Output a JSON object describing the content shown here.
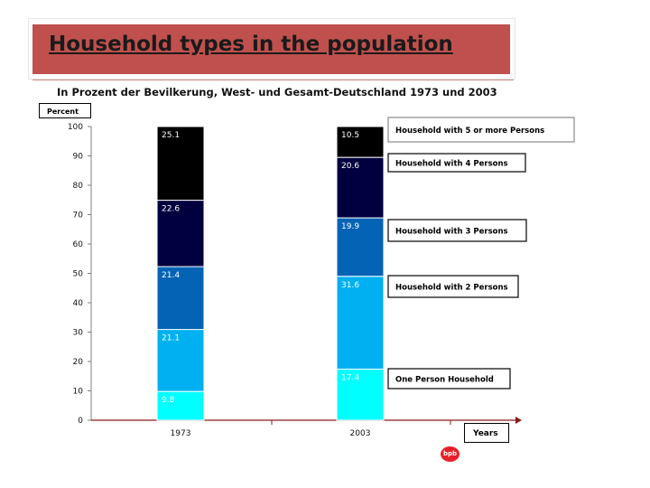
{
  "slide": {
    "title": "Household types in the population",
    "subtitle": "In Prozent der Bevilkerung, West- und Gesamt-Deutschland 1973 und 2003",
    "y_unit_label": "Percent",
    "x_unit_label": "Years",
    "logo_text": "bpb"
  },
  "chart_data": {
    "type": "bar",
    "stacked": true,
    "title": "Household types in the population",
    "subtitle": "In Prozent der Bevilkerung, West- und Gesamt-Deutschland 1973 und 2003",
    "xlabel": "Years",
    "ylabel": "Percent",
    "ylim": [
      0,
      100
    ],
    "yticks": [
      0,
      10,
      20,
      30,
      40,
      50,
      60,
      70,
      80,
      90,
      100
    ],
    "categories": [
      "1973",
      "2003"
    ],
    "series": [
      {
        "name": "One Person Household",
        "color": "#00ffff",
        "values": [
          9.8,
          17.4
        ],
        "labels": [
          "9.8",
          "17.4"
        ]
      },
      {
        "name": "Household with 2 Persons",
        "color": "#00b0f0",
        "values": [
          21.1,
          31.6
        ],
        "labels": [
          "21.1",
          "31.6"
        ]
      },
      {
        "name": "Household with 3 Persons",
        "color": "#0563b5",
        "values": [
          21.4,
          19.9
        ],
        "labels": [
          "21.4",
          "19.9"
        ]
      },
      {
        "name": "Household with 4 Persons",
        "color": "#00003e",
        "values": [
          22.6,
          20.6
        ],
        "labels": [
          "22.6",
          "20.6"
        ]
      },
      {
        "name": "Household with 5 or more Persons",
        "color": "#000000",
        "values": [
          25.1,
          10.5
        ],
        "labels": [
          "25.1",
          "10.5"
        ]
      }
    ],
    "legend_position": "right"
  }
}
